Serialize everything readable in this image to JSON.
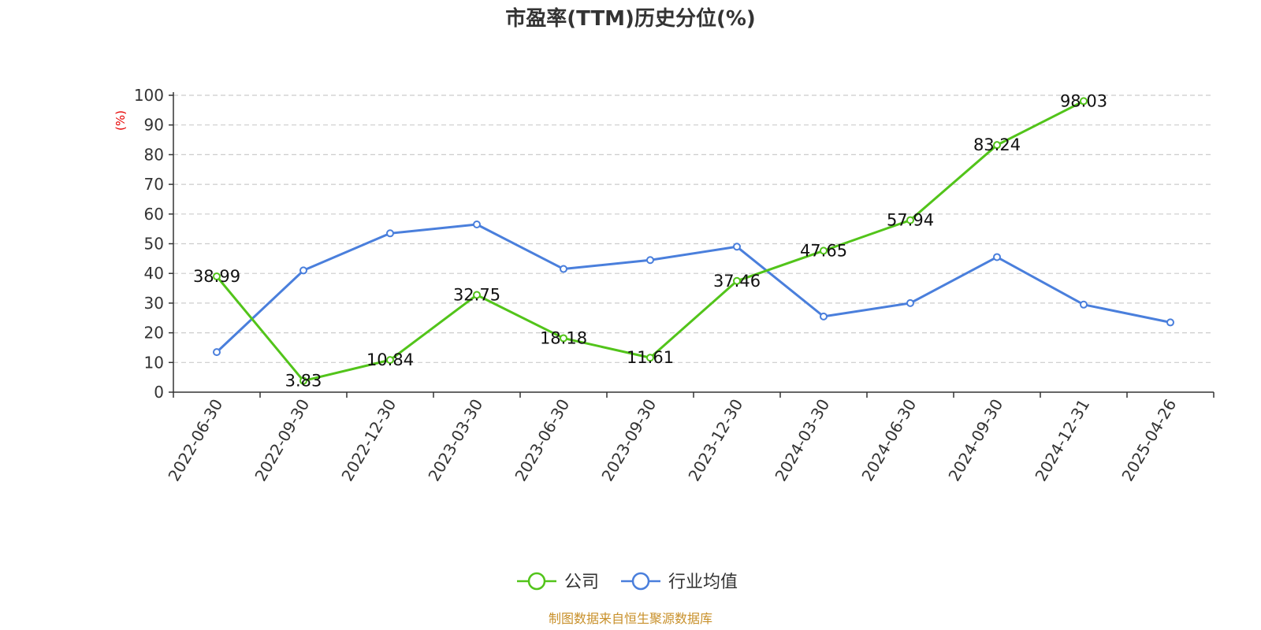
{
  "chart_data": {
    "type": "line",
    "title": "市盈率(TTM)历史分位(%)",
    "ylabel": "(%)",
    "ylim": [
      0,
      100
    ],
    "yticks": [
      0,
      10,
      20,
      30,
      40,
      50,
      60,
      70,
      80,
      90,
      100
    ],
    "categories": [
      "2022-06-30",
      "2022-09-30",
      "2022-12-30",
      "2023-03-30",
      "2023-06-30",
      "2023-09-30",
      "2023-12-30",
      "2024-03-30",
      "2024-06-30",
      "2024-09-30",
      "2024-12-31",
      "2025-04-26"
    ],
    "grid": true,
    "legend_position": "bottom-center",
    "series": [
      {
        "name": "公司",
        "color": "#52c41a",
        "values": [
          38.99,
          3.83,
          10.84,
          32.75,
          18.18,
          11.61,
          37.46,
          47.65,
          57.94,
          83.24,
          98.03,
          null
        ],
        "labels": [
          "38.99",
          "3.83",
          "10.84",
          "32.75",
          "18.18",
          "11.61",
          "37.46",
          "47.65",
          "57.94",
          "83.24",
          "98.03",
          ""
        ]
      },
      {
        "name": "行业均值",
        "color": "#4a7fdc",
        "values": [
          13.5,
          41,
          53.5,
          56.5,
          41.5,
          44.5,
          49,
          25.5,
          30,
          45.5,
          29.5,
          23.5
        ]
      }
    ]
  },
  "source": "制图数据来自恒生聚源数据库"
}
